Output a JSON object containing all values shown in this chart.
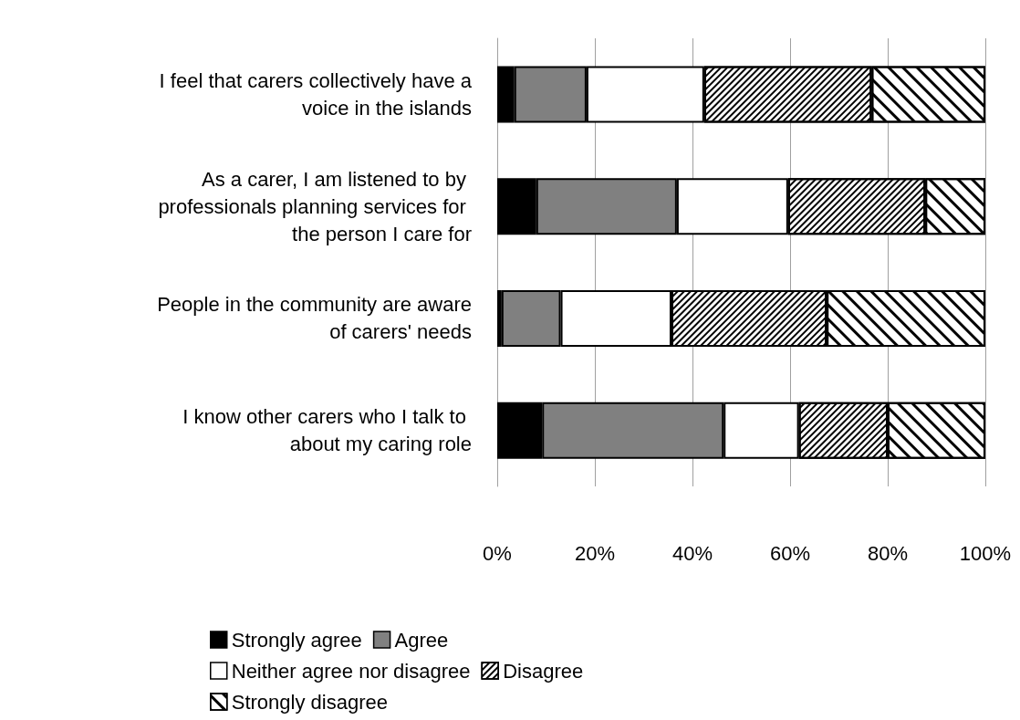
{
  "chart_data": {
    "type": "bar",
    "orientation": "horizontal",
    "stacked": true,
    "categories": [
      "I feel that carers collectively have a voice in the islands",
      "As a carer, I am listened to by professionals planning services for the person I care for",
      "People in the community are aware of carers' needs",
      "I know other carers who I talk to about my caring role"
    ],
    "series": [
      {
        "name": "Strongly agree",
        "color": "#000000",
        "values": [
          3.5,
          8.0,
          0.9,
          9.2
        ]
      },
      {
        "name": "Agree",
        "color": "#808080",
        "values": [
          14.8,
          28.8,
          12.1,
          37.2
        ]
      },
      {
        "name": "Neither agree nor disagree",
        "color": "#ffffff",
        "values": [
          24.1,
          22.8,
          22.7,
          15.4
        ]
      },
      {
        "name": "Disagree",
        "color": "#ffffff",
        "values": [
          34.3,
          28.1,
          31.8,
          18.2
        ]
      },
      {
        "name": "Strongly disagree",
        "color": "#ffffff",
        "values": [
          23.3,
          12.3,
          32.5,
          20.0
        ]
      }
    ],
    "xlim": [
      0,
      100
    ],
    "xticks": [
      {
        "value": 0,
        "label": "0%"
      },
      {
        "value": 20,
        "label": "20%"
      },
      {
        "value": 40,
        "label": "40%"
      },
      {
        "value": 60,
        "label": "60%"
      },
      {
        "value": 80,
        "label": "80%"
      },
      {
        "value": 100,
        "label": "100%"
      }
    ],
    "grid": "x",
    "legend": "bottom"
  }
}
